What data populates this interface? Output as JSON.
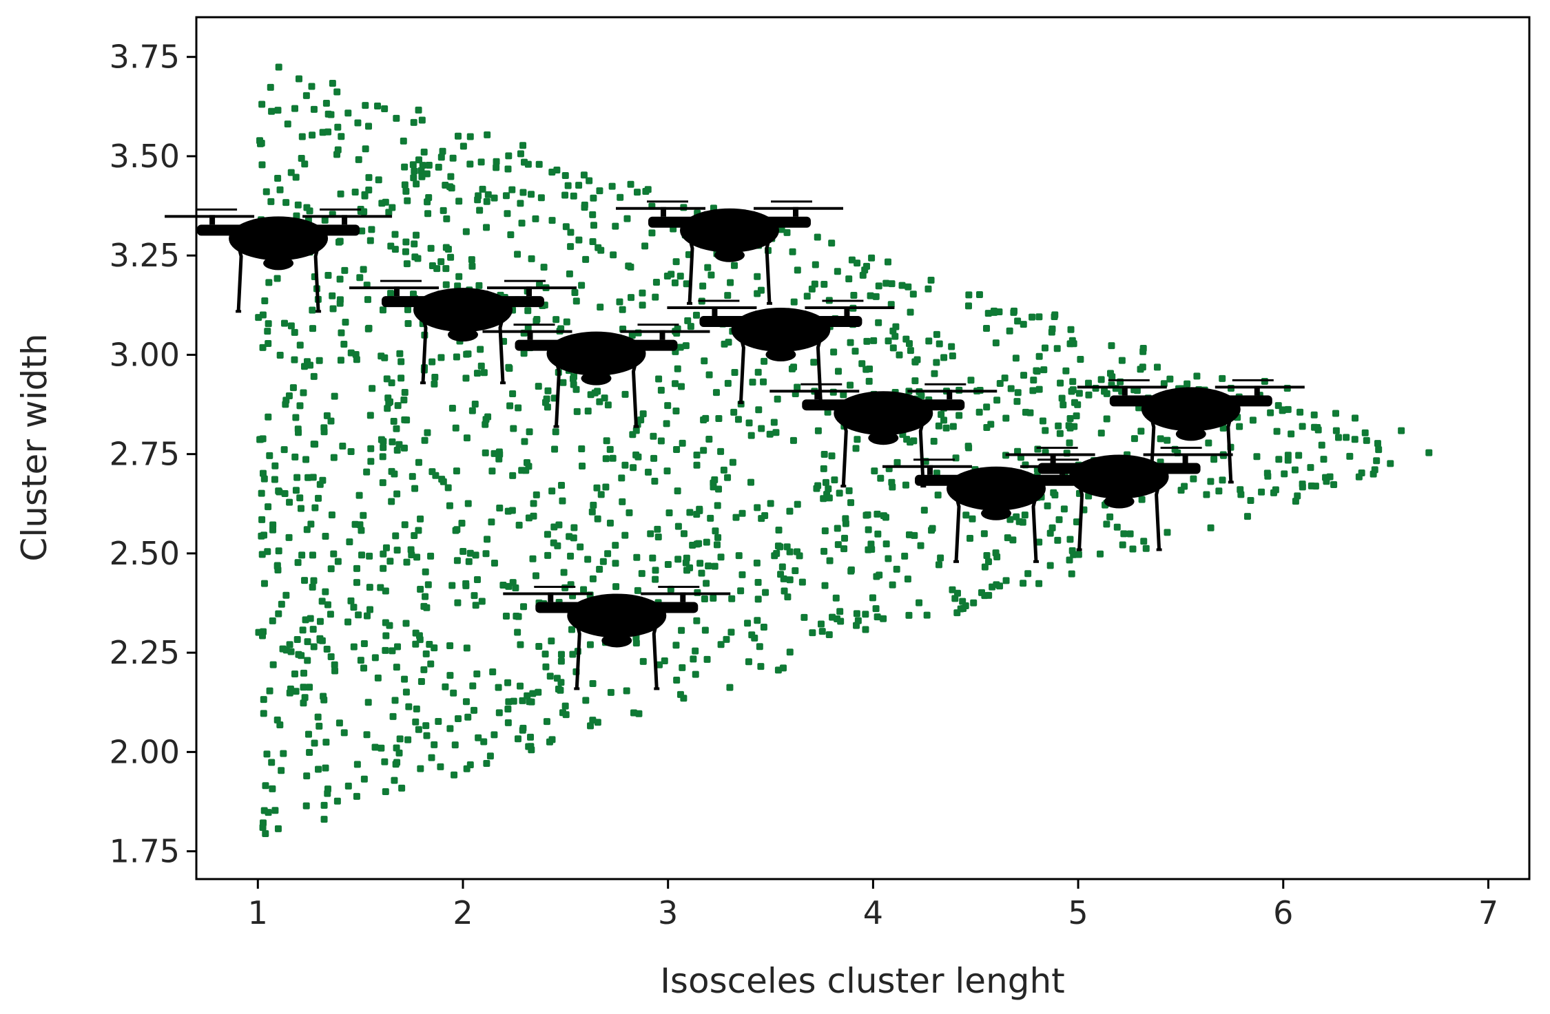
{
  "chart_data": {
    "type": "scatter",
    "title": "",
    "xlabel": "Isosceles cluster lenght",
    "ylabel": "Cluster width",
    "xlim": [
      0.7,
      7.2
    ],
    "ylim": [
      1.68,
      3.85
    ],
    "xticks": [
      1,
      2,
      3,
      4,
      5,
      6,
      7
    ],
    "xtick_labels": [
      "1",
      "2",
      "3",
      "4",
      "5",
      "6",
      "7"
    ],
    "yticks": [
      1.75,
      2.0,
      2.25,
      2.5,
      2.75,
      3.0,
      3.25,
      3.5,
      3.75
    ],
    "ytick_labels": [
      "1.75",
      "2.00",
      "2.25",
      "2.50",
      "2.75",
      "3.00",
      "3.25",
      "3.50",
      "3.75"
    ],
    "grid": false,
    "legend": "none",
    "point_color": "#0f7a35",
    "region": {
      "description_shape": "triangle",
      "vertices": [
        [
          1.0,
          3.75
        ],
        [
          1.0,
          1.77
        ],
        [
          6.9,
          2.77
        ]
      ],
      "approx_point_count": 1600
    },
    "markers": {
      "icon": "drone-icon",
      "color": "#000000",
      "points": [
        {
          "x": 1.1,
          "y": 3.3
        },
        {
          "x": 3.3,
          "y": 3.32
        },
        {
          "x": 2.0,
          "y": 3.12
        },
        {
          "x": 2.65,
          "y": 3.01
        },
        {
          "x": 3.55,
          "y": 3.07
        },
        {
          "x": 4.05,
          "y": 2.86
        },
        {
          "x": 5.55,
          "y": 2.87
        },
        {
          "x": 4.6,
          "y": 2.67
        },
        {
          "x": 5.2,
          "y": 2.7
        },
        {
          "x": 2.75,
          "y": 2.35
        }
      ]
    }
  }
}
